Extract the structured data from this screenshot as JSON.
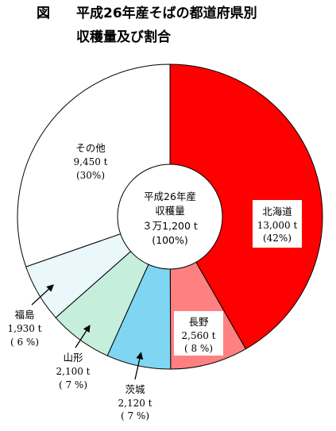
{
  "title": {
    "line1_prefix": "図",
    "line1": "平成26年産そばの都道府県別",
    "line2": "収穫量及び割合"
  },
  "center": {
    "line1": "平成26年産",
    "line2": "収穫量",
    "line3": "３万1,200 t",
    "line4": "(100%)"
  },
  "chart_data": {
    "type": "pie",
    "style": "donut",
    "title": "平成26年産そばの都道府県別収穫量及び割合",
    "total": "３万1,200 t",
    "slices": [
      {
        "name": "北海道",
        "value": 13000,
        "value_label": "13,000 t",
        "percent_label": "(42%)",
        "percent": 42,
        "color": "#ff0000"
      },
      {
        "name": "長野",
        "value": 2560,
        "value_label": "2,560 t",
        "percent_label": "( 8 %)",
        "percent": 8,
        "color": "#ff8080"
      },
      {
        "name": "茨城",
        "value": 2120,
        "value_label": "2,120 t",
        "percent_label": "( 7 %)",
        "percent": 7,
        "color": "#7fd6f2"
      },
      {
        "name": "山形",
        "value": 2100,
        "value_label": "2,100 t",
        "percent_label": "( 7 %)",
        "percent": 7,
        "color": "#c6eedd"
      },
      {
        "name": "福島",
        "value": 1930,
        "value_label": "1,930 t",
        "percent_label": "( 6 %)",
        "percent": 6,
        "color": "#eaf7fb"
      },
      {
        "name": "その他",
        "value": 9450,
        "value_label": "9,450 t",
        "percent_label": "(30%)",
        "percent": 30,
        "color": "#ffffff"
      }
    ]
  }
}
